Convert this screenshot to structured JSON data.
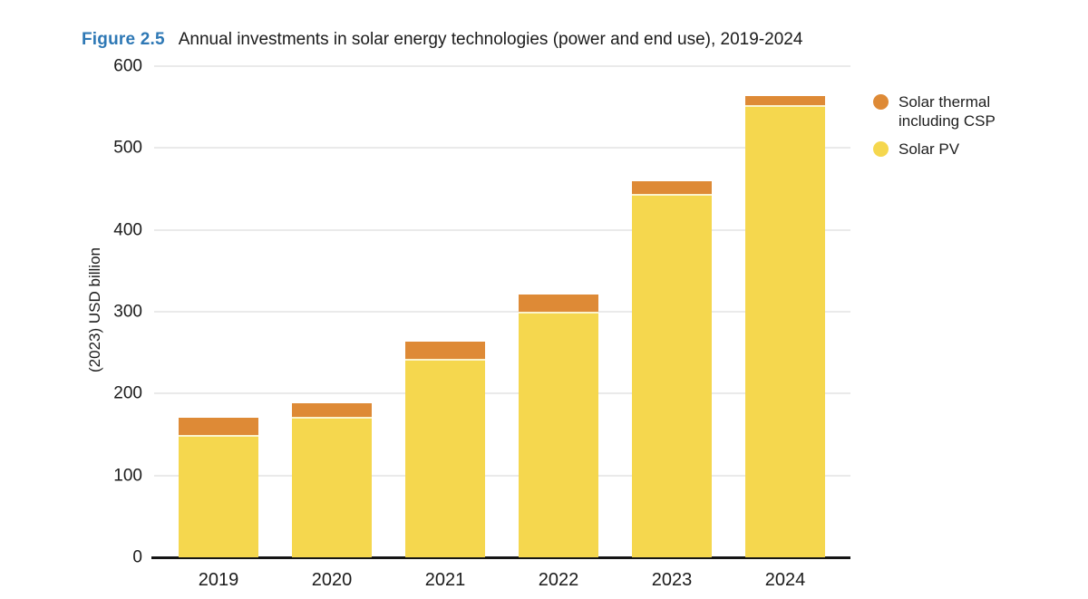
{
  "figure": {
    "label": "Figure 2.5",
    "title": "Annual investments in solar energy technologies (power and end use), 2019-2024"
  },
  "chart_data": {
    "type": "bar",
    "stacked": true,
    "title": "Annual investments in solar energy technologies (power and end use), 2019-2024",
    "categories": [
      "2019",
      "2020",
      "2021",
      "2022",
      "2023",
      "2024"
    ],
    "series": [
      {
        "name": "Solar PV",
        "color": "#F5D74E",
        "values": [
          149,
          172,
          243,
          300,
          444,
          552
        ]
      },
      {
        "name": "Solar thermal including CSP",
        "color": "#DE8A36",
        "values": [
          21,
          16,
          21,
          21,
          15,
          12
        ]
      }
    ],
    "totals": [
      170,
      188,
      264,
      321,
      459,
      564
    ],
    "xlabel": "",
    "ylabel": "(2023) USD billion",
    "ylim": [
      0,
      600
    ],
    "yticks": [
      0,
      100,
      200,
      300,
      400,
      500,
      600
    ],
    "grid": true,
    "legend_position": "top-right"
  },
  "legend": {
    "items": [
      {
        "label": "Solar thermal including CSP",
        "color": "#DE8A36"
      },
      {
        "label": "Solar PV",
        "color": "#F5D74E"
      }
    ]
  },
  "colors": {
    "figure_label_blue": "#2E78B5",
    "bar_yellow": "#F5D74E",
    "bar_orange": "#DE8A36",
    "segment_divider": "#FBF3CC",
    "gridline": "#EAEAEA",
    "axis_line": "#141414",
    "text": "#1B1B1B"
  }
}
